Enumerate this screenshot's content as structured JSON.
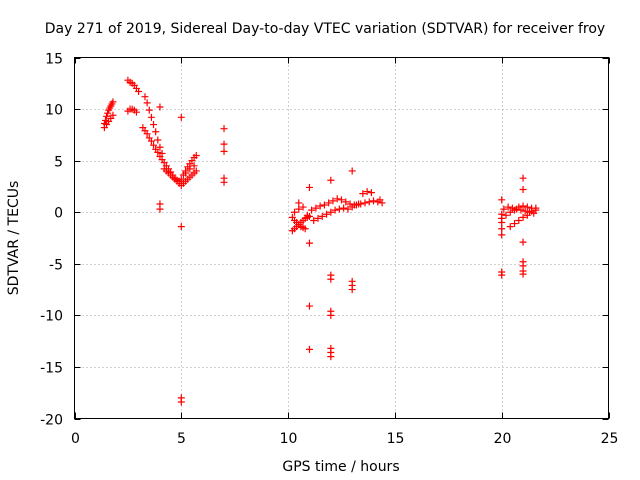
{
  "chart_data": {
    "type": "scatter",
    "title": "Day 271 of 2019, Sidereal Day-to-day VTEC variation (SDTVAR) for receiver froy",
    "xlabel": "GPS time / hours",
    "ylabel": "SDTVAR / TECUs",
    "xlim": [
      0,
      25
    ],
    "ylim": [
      -20,
      15
    ],
    "xticks": [
      0,
      5,
      10,
      15,
      20,
      25
    ],
    "yticks": [
      -20,
      -15,
      -10,
      -5,
      0,
      5,
      10,
      15
    ],
    "xtick_labels": [
      "0",
      "5",
      "10",
      "15",
      "20",
      "25"
    ],
    "ytick_labels": [
      "-20",
      "-15",
      "-10",
      "-5",
      "0",
      "5",
      "10",
      "15"
    ],
    "grid": true,
    "marker": "+",
    "color": "#ff0000",
    "series": [
      {
        "name": "SDTVAR",
        "points": [
          [
            1.4,
            8.6
          ],
          [
            1.45,
            8.9
          ],
          [
            1.5,
            9.3
          ],
          [
            1.55,
            9.6
          ],
          [
            1.6,
            9.9
          ],
          [
            1.65,
            10.1
          ],
          [
            1.7,
            10.3
          ],
          [
            1.75,
            10.5
          ],
          [
            1.8,
            10.7
          ],
          [
            1.4,
            8.2
          ],
          [
            1.5,
            8.5
          ],
          [
            1.6,
            8.8
          ],
          [
            1.7,
            9.1
          ],
          [
            1.8,
            9.4
          ],
          [
            2.5,
            9.8
          ],
          [
            2.6,
            10.0
          ],
          [
            2.7,
            10.0
          ],
          [
            2.8,
            9.9
          ],
          [
            2.9,
            9.7
          ],
          [
            2.5,
            12.8
          ],
          [
            2.6,
            12.6
          ],
          [
            2.7,
            12.5
          ],
          [
            2.8,
            12.3
          ],
          [
            2.9,
            12.0
          ],
          [
            3.0,
            11.7
          ],
          [
            3.3,
            11.2
          ],
          [
            3.4,
            10.6
          ],
          [
            3.5,
            9.9
          ],
          [
            3.6,
            9.2
          ],
          [
            3.7,
            8.5
          ],
          [
            3.8,
            7.8
          ],
          [
            3.9,
            7.0
          ],
          [
            4.0,
            6.3
          ],
          [
            4.1,
            5.7
          ],
          [
            3.2,
            8.2
          ],
          [
            3.3,
            7.9
          ],
          [
            3.4,
            7.6
          ],
          [
            3.5,
            7.2
          ],
          [
            3.6,
            6.9
          ],
          [
            3.7,
            6.5
          ],
          [
            3.8,
            6.1
          ],
          [
            3.9,
            5.8
          ],
          [
            4.0,
            5.4
          ],
          [
            4.1,
            5.1
          ],
          [
            4.2,
            4.8
          ],
          [
            4.3,
            4.5
          ],
          [
            4.4,
            4.2
          ],
          [
            4.5,
            3.9
          ],
          [
            4.6,
            3.6
          ],
          [
            4.7,
            3.3
          ],
          [
            4.8,
            3.0
          ],
          [
            4.9,
            2.8
          ],
          [
            5.0,
            2.6
          ],
          [
            4.2,
            4.2
          ],
          [
            4.3,
            4.0
          ],
          [
            4.4,
            3.8
          ],
          [
            4.5,
            3.6
          ],
          [
            4.6,
            3.4
          ],
          [
            4.7,
            3.2
          ],
          [
            4.8,
            3.1
          ],
          [
            4.9,
            3.0
          ],
          [
            5.0,
            3.2
          ],
          [
            5.1,
            3.6
          ],
          [
            5.2,
            4.0
          ],
          [
            5.3,
            4.4
          ],
          [
            5.4,
            4.7
          ],
          [
            5.5,
            5.0
          ],
          [
            5.6,
            5.3
          ],
          [
            5.7,
            5.5
          ],
          [
            5.1,
            2.8
          ],
          [
            5.2,
            3.0
          ],
          [
            5.3,
            3.2
          ],
          [
            5.4,
            3.4
          ],
          [
            5.5,
            3.6
          ],
          [
            5.6,
            3.8
          ],
          [
            5.7,
            4.0
          ],
          [
            5.2,
            3.8
          ],
          [
            5.4,
            4.2
          ],
          [
            5.6,
            4.5
          ],
          [
            4.0,
            10.2
          ],
          [
            4.0,
            0.8
          ],
          [
            4.0,
            0.3
          ],
          [
            5.0,
            9.2
          ],
          [
            5.0,
            -1.4
          ],
          [
            5.0,
            -18.0
          ],
          [
            5.0,
            -18.4
          ],
          [
            7.0,
            8.1
          ],
          [
            7.0,
            6.6
          ],
          [
            7.0,
            5.9
          ],
          [
            7.0,
            3.3
          ],
          [
            7.0,
            2.9
          ],
          [
            10.2,
            -0.5
          ],
          [
            10.3,
            -0.8
          ],
          [
            10.4,
            -1.0
          ],
          [
            10.5,
            -1.2
          ],
          [
            10.6,
            -1.4
          ],
          [
            10.7,
            -1.5
          ],
          [
            10.8,
            -1.6
          ],
          [
            10.2,
            -1.8
          ],
          [
            10.3,
            -1.6
          ],
          [
            10.4,
            -1.4
          ],
          [
            10.5,
            -1.2
          ],
          [
            10.6,
            -1.0
          ],
          [
            10.7,
            -0.8
          ],
          [
            10.8,
            -0.6
          ],
          [
            10.9,
            -0.5
          ],
          [
            11.0,
            -0.4
          ],
          [
            10.3,
            0.0
          ],
          [
            10.5,
            0.3
          ],
          [
            10.7,
            0.5
          ],
          [
            10.9,
            -0.3
          ],
          [
            11.1,
            0.2
          ],
          [
            11.3,
            0.4
          ],
          [
            11.5,
            0.6
          ],
          [
            11.7,
            0.7
          ],
          [
            11.2,
            -0.8
          ],
          [
            11.4,
            -0.6
          ],
          [
            11.6,
            -0.4
          ],
          [
            11.8,
            -0.2
          ],
          [
            12.0,
            0.0
          ],
          [
            12.2,
            0.2
          ],
          [
            12.4,
            0.3
          ],
          [
            12.6,
            0.4
          ],
          [
            11.9,
            0.9
          ],
          [
            12.1,
            1.1
          ],
          [
            12.3,
            1.3
          ],
          [
            12.5,
            1.2
          ],
          [
            12.7,
            1.0
          ],
          [
            12.9,
            0.8
          ],
          [
            13.1,
            0.7
          ],
          [
            13.3,
            0.8
          ],
          [
            12.8,
            0.3
          ],
          [
            13.0,
            0.5
          ],
          [
            13.2,
            0.7
          ],
          [
            13.4,
            0.8
          ],
          [
            13.6,
            0.9
          ],
          [
            13.8,
            1.0
          ],
          [
            14.0,
            1.1
          ],
          [
            14.2,
            1.0
          ],
          [
            14.4,
            0.9
          ],
          [
            13.5,
            1.8
          ],
          [
            13.7,
            2.0
          ],
          [
            13.9,
            1.9
          ],
          [
            14.3,
            1.2
          ],
          [
            10.5,
            0.9
          ],
          [
            11.0,
            2.4
          ],
          [
            11.0,
            -3.0
          ],
          [
            11.0,
            -9.1
          ],
          [
            11.0,
            -13.3
          ],
          [
            12.0,
            3.1
          ],
          [
            12.0,
            -6.1
          ],
          [
            12.0,
            -6.5
          ],
          [
            12.0,
            -9.6
          ],
          [
            12.0,
            -10.0
          ],
          [
            12.0,
            -13.2
          ],
          [
            12.0,
            -13.6
          ],
          [
            12.0,
            -14.0
          ],
          [
            13.0,
            4.0
          ],
          [
            13.0,
            -6.7
          ],
          [
            13.0,
            -7.1
          ],
          [
            13.0,
            -7.5
          ],
          [
            20.0,
            -0.2
          ],
          [
            20.0,
            -0.6
          ],
          [
            20.0,
            -1.0
          ],
          [
            20.0,
            -1.6
          ],
          [
            20.0,
            -2.2
          ],
          [
            20.0,
            1.2
          ],
          [
            20.0,
            -5.8
          ],
          [
            20.0,
            -6.1
          ],
          [
            20.1,
            0.3
          ],
          [
            20.3,
            0.5
          ],
          [
            20.5,
            0.4
          ],
          [
            20.7,
            0.3
          ],
          [
            20.9,
            0.2
          ],
          [
            21.1,
            0.1
          ],
          [
            21.3,
            0.0
          ],
          [
            21.5,
            -0.1
          ],
          [
            20.4,
            -1.4
          ],
          [
            20.6,
            -1.1
          ],
          [
            20.8,
            -0.8
          ],
          [
            21.0,
            -0.5
          ],
          [
            21.2,
            -0.3
          ],
          [
            21.4,
            0.1
          ],
          [
            21.6,
            0.4
          ],
          [
            20.2,
            -0.3
          ],
          [
            20.4,
            0.0
          ],
          [
            20.6,
            0.2
          ],
          [
            20.8,
            0.5
          ],
          [
            21.0,
            0.6
          ],
          [
            21.2,
            0.5
          ],
          [
            21.4,
            0.4
          ],
          [
            21.6,
            0.2
          ],
          [
            21.0,
            3.3
          ],
          [
            21.0,
            2.2
          ],
          [
            21.0,
            -2.9
          ],
          [
            21.0,
            -4.8
          ],
          [
            21.0,
            -5.2
          ],
          [
            21.0,
            -5.7
          ],
          [
            21.0,
            -6.0
          ]
        ]
      }
    ]
  }
}
